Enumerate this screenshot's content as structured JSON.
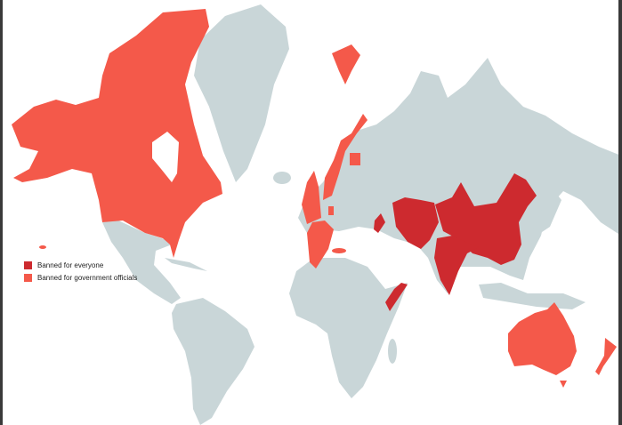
{
  "legend": {
    "items": [
      {
        "label": "Banned for everyone",
        "color": "#cd2a2f"
      },
      {
        "label": "Banned for government officials",
        "color": "#f4594a"
      }
    ]
  },
  "colors": {
    "land": "#c9d6d8",
    "ocean": "#ffffff"
  }
}
